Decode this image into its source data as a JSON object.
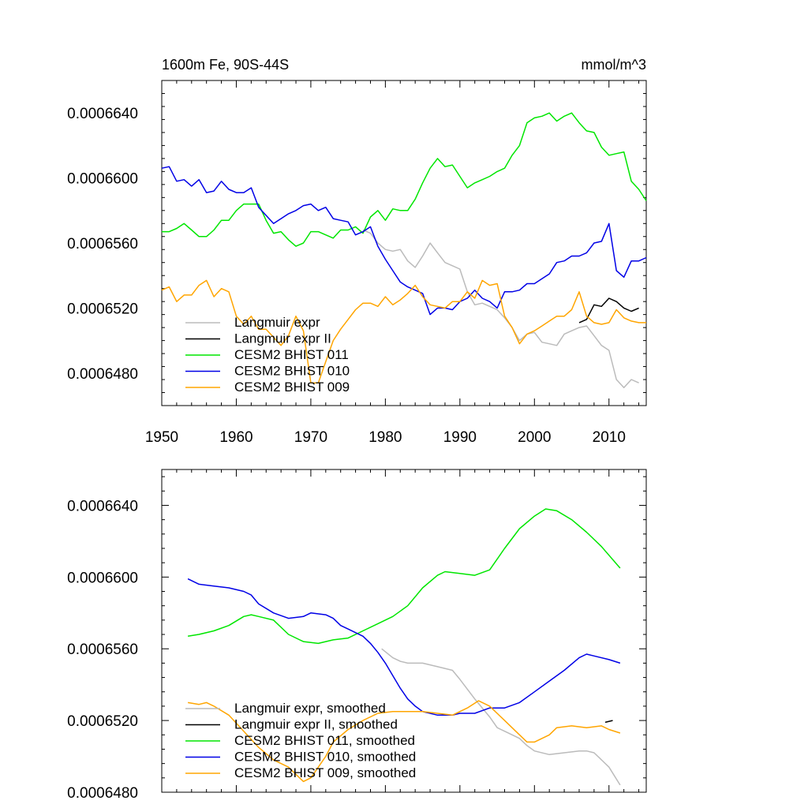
{
  "chart_data": [
    {
      "type": "line",
      "title_left": "1600m Fe, 90S-44S",
      "title_right": "mmol/m^3",
      "xlim": [
        1950,
        2015
      ],
      "ylim": [
        0.000646,
        0.000666
      ],
      "xticks": [
        1950,
        1960,
        1970,
        1980,
        1990,
        2000,
        2010
      ],
      "xtick_labels": [
        "1950",
        "1960",
        "1970",
        "1980",
        "1990",
        "2000",
        "2010"
      ],
      "yticks": [
        0.000648,
        0.000652,
        0.000656,
        0.00066,
        0.000664
      ],
      "ytick_labels": [
        "0.0006480",
        "0.0006520",
        "0.0006560",
        "0.0006600",
        "0.0006640"
      ],
      "legend_position": "bottom-left",
      "series": [
        {
          "name": "Langmuir expr",
          "color": "#bbbbbb",
          "x": [
            1977,
            1978,
            1979,
            1980,
            1981,
            1982,
            1983,
            1984,
            1985,
            1986,
            1987,
            1988,
            1989,
            1990,
            1991,
            1992,
            1993,
            1994,
            1995,
            1996,
            1997,
            1998,
            1999,
            2000,
            2001,
            2002,
            2003,
            2004,
            2005,
            2006,
            2007,
            2008,
            2009,
            2010,
            2011,
            2012,
            2013,
            2014
          ],
          "y": [
            0.0006568,
            0.0006566,
            0.000656,
            0.0006556,
            0.0006555,
            0.0006556,
            0.0006549,
            0.0006545,
            0.0006552,
            0.000656,
            0.0006554,
            0.0006548,
            0.0006546,
            0.0006544,
            0.000653,
            0.0006522,
            0.0006523,
            0.0006521,
            0.0006519,
            0.0006514,
            0.0006508,
            0.00065,
            0.0006504,
            0.0006505,
            0.0006499,
            0.0006498,
            0.0006497,
            0.0006504,
            0.0006506,
            0.0006508,
            0.0006509,
            0.0006503,
            0.0006497,
            0.0006494,
            0.0006476,
            0.0006471,
            0.0006476,
            0.0006474
          ]
        },
        {
          "name": "Langmuir expr II",
          "color": "#000000",
          "x": [
            2006,
            2007,
            2008,
            2009,
            2010,
            2011,
            2012,
            2013,
            2014
          ],
          "y": [
            0.0006511,
            0.0006513,
            0.0006522,
            0.0006521,
            0.0006526,
            0.0006524,
            0.000652,
            0.0006518,
            0.000652
          ]
        },
        {
          "name": "CESM2 BHIST 011",
          "color": "#00e600",
          "x": [
            1950,
            1951,
            1952,
            1953,
            1954,
            1955,
            1956,
            1957,
            1958,
            1959,
            1960,
            1961,
            1962,
            1963,
            1964,
            1965,
            1966,
            1967,
            1968,
            1969,
            1970,
            1971,
            1972,
            1973,
            1974,
            1975,
            1976,
            1977,
            1978,
            1979,
            1980,
            1981,
            1982,
            1983,
            1984,
            1985,
            1986,
            1987,
            1988,
            1989,
            1990,
            1991,
            1992,
            1993,
            1994,
            1995,
            1996,
            1997,
            1998,
            1999,
            2000,
            2001,
            2002,
            2003,
            2004,
            2005,
            2006,
            2007,
            2008,
            2009,
            2010,
            2011,
            2012,
            2013,
            2014,
            2015
          ],
          "y": [
            0.0006567,
            0.0006567,
            0.0006569,
            0.0006572,
            0.0006568,
            0.0006564,
            0.0006564,
            0.0006568,
            0.0006574,
            0.0006574,
            0.000658,
            0.0006584,
            0.0006584,
            0.0006584,
            0.0006574,
            0.0006566,
            0.0006567,
            0.0006562,
            0.0006558,
            0.000656,
            0.0006567,
            0.0006567,
            0.0006565,
            0.0006563,
            0.0006568,
            0.0006568,
            0.000657,
            0.0006566,
            0.0006576,
            0.000658,
            0.0006574,
            0.0006581,
            0.000658,
            0.000658,
            0.0006587,
            0.0006597,
            0.0006606,
            0.0006612,
            0.0006607,
            0.0006608,
            0.0006601,
            0.0006594,
            0.0006597,
            0.0006599,
            0.0006601,
            0.0006604,
            0.0006606,
            0.0006614,
            0.000662,
            0.0006634,
            0.0006637,
            0.0006638,
            0.000664,
            0.0006635,
            0.0006638,
            0.000664,
            0.0006634,
            0.0006629,
            0.0006628,
            0.0006619,
            0.0006614,
            0.0006615,
            0.0006616,
            0.0006598,
            0.0006593,
            0.0006586
          ]
        },
        {
          "name": "CESM2 BHIST 010",
          "color": "#0000e6",
          "x": [
            1950,
            1951,
            1952,
            1953,
            1954,
            1955,
            1956,
            1957,
            1958,
            1959,
            1960,
            1961,
            1962,
            1963,
            1964,
            1965,
            1966,
            1967,
            1968,
            1969,
            1970,
            1971,
            1972,
            1973,
            1974,
            1975,
            1976,
            1977,
            1978,
            1979,
            1980,
            1981,
            1982,
            1983,
            1984,
            1985,
            1986,
            1987,
            1988,
            1989,
            1990,
            1991,
            1992,
            1993,
            1994,
            1995,
            1996,
            1997,
            1998,
            1999,
            2000,
            2001,
            2002,
            2003,
            2004,
            2005,
            2006,
            2007,
            2008,
            2009,
            2010,
            2011,
            2012,
            2013,
            2014,
            2015
          ],
          "y": [
            0.0006606,
            0.0006607,
            0.0006598,
            0.0006599,
            0.0006595,
            0.0006599,
            0.0006591,
            0.0006592,
            0.0006598,
            0.0006593,
            0.0006591,
            0.0006591,
            0.0006594,
            0.0006582,
            0.0006577,
            0.0006572,
            0.0006575,
            0.0006578,
            0.000658,
            0.0006583,
            0.0006584,
            0.000658,
            0.0006582,
            0.0006575,
            0.0006574,
            0.0006573,
            0.0006565,
            0.0006567,
            0.000657,
            0.0006558,
            0.000655,
            0.0006543,
            0.0006536,
            0.0006533,
            0.0006531,
            0.0006529,
            0.0006516,
            0.000652,
            0.000652,
            0.0006519,
            0.0006524,
            0.0006526,
            0.0006531,
            0.0006526,
            0.0006524,
            0.000652,
            0.000653,
            0.000653,
            0.0006531,
            0.0006535,
            0.0006535,
            0.0006538,
            0.0006541,
            0.0006548,
            0.0006549,
            0.0006552,
            0.0006552,
            0.0006554,
            0.000656,
            0.0006561,
            0.0006572,
            0.0006543,
            0.0006539,
            0.0006549,
            0.0006549,
            0.0006551
          ]
        },
        {
          "name": "CESM2 BHIST 009",
          "color": "#ffa500",
          "x": [
            1950,
            1951,
            1952,
            1953,
            1954,
            1955,
            1956,
            1957,
            1958,
            1959,
            1960,
            1961,
            1962,
            1963,
            1964,
            1965,
            1966,
            1967,
            1968,
            1969,
            1970,
            1971,
            1972,
            1973,
            1974,
            1975,
            1976,
            1977,
            1978,
            1979,
            1980,
            1981,
            1982,
            1983,
            1984,
            1985,
            1986,
            1987,
            1988,
            1989,
            1990,
            1991,
            1992,
            1993,
            1994,
            1995,
            1996,
            1997,
            1998,
            1999,
            2000,
            2001,
            2002,
            2003,
            2004,
            2005,
            2006,
            2007,
            2008,
            2009,
            2010,
            2011,
            2012,
            2013,
            2014,
            2015
          ],
          "y": [
            0.0006531,
            0.0006533,
            0.0006524,
            0.0006528,
            0.0006528,
            0.0006534,
            0.0006537,
            0.0006527,
            0.0006532,
            0.000653,
            0.0006515,
            0.000651,
            0.0006515,
            0.0006507,
            0.0006507,
            0.0006502,
            0.0006497,
            0.0006503,
            0.0006515,
            0.0006506,
            0.0006474,
            0.0006474,
            0.0006487,
            0.00065,
            0.0006507,
            0.0006513,
            0.0006519,
            0.0006523,
            0.0006523,
            0.0006521,
            0.0006527,
            0.0006522,
            0.0006525,
            0.0006529,
            0.0006534,
            0.0006527,
            0.0006522,
            0.0006521,
            0.000652,
            0.0006524,
            0.0006524,
            0.000653,
            0.0006526,
            0.0006537,
            0.0006534,
            0.0006535,
            0.0006515,
            0.0006508,
            0.0006498,
            0.0006504,
            0.0006506,
            0.0006509,
            0.0006512,
            0.0006515,
            0.0006515,
            0.0006519,
            0.000653,
            0.0006515,
            0.0006511,
            0.000651,
            0.0006511,
            0.0006519,
            0.0006514,
            0.0006512,
            0.0006511,
            0.0006511
          ]
        }
      ]
    },
    {
      "type": "line",
      "title_left": "",
      "title_right": "",
      "xlim": [
        1950,
        2015
      ],
      "ylim": [
        0.000648,
        0.000666
      ],
      "xticks": [
        1950,
        1960,
        1970,
        1980,
        1990,
        2000,
        2010
      ],
      "xtick_labels": [],
      "yticks": [
        0.000648,
        0.000652,
        0.000656,
        0.00066,
        0.000664
      ],
      "ytick_labels": [
        "0.0006480",
        "0.0006520",
        "0.0006560",
        "0.0006600",
        "0.0006640"
      ],
      "legend_position": "bottom-left",
      "series": [
        {
          "name": "Langmuir expr, smoothed",
          "color": "#bbbbbb",
          "x": [
            1979.5,
            1981,
            1982,
            1983,
            1985,
            1987,
            1989,
            1990,
            1992,
            1994,
            1995,
            1996,
            1998,
            1999,
            2000,
            2002,
            2004,
            2006,
            2007,
            2008,
            2010,
            2011.5
          ],
          "y": [
            0.000656,
            0.0006555,
            0.0006553,
            0.0006552,
            0.0006552,
            0.000655,
            0.0006548,
            0.0006543,
            0.0006532,
            0.0006522,
            0.0006516,
            0.0006514,
            0.000651,
            0.0006506,
            0.0006503,
            0.0006501,
            0.0006502,
            0.0006503,
            0.0006503,
            0.0006502,
            0.0006494,
            0.0006484
          ]
        },
        {
          "name": "Langmuir expr II, smoothed",
          "color": "#000000",
          "x": [
            2009.5,
            2010.5
          ],
          "y": [
            0.0006519,
            0.000652
          ]
        },
        {
          "name": "CESM2 BHIST 011, smoothed",
          "color": "#00e600",
          "x": [
            1953.5,
            1955,
            1957,
            1959,
            1961,
            1962,
            1963,
            1965,
            1967,
            1969,
            1971,
            1973,
            1975,
            1977,
            1979,
            1981,
            1983,
            1985,
            1987,
            1988,
            1990,
            1992,
            1994,
            1996,
            1998,
            2000,
            2001.5,
            2003,
            2005,
            2007,
            2009,
            2011.5
          ],
          "y": [
            0.0006567,
            0.0006568,
            0.000657,
            0.0006573,
            0.0006578,
            0.0006579,
            0.0006578,
            0.0006576,
            0.0006568,
            0.0006564,
            0.0006563,
            0.0006565,
            0.0006566,
            0.000657,
            0.0006574,
            0.0006578,
            0.0006584,
            0.0006594,
            0.0006601,
            0.0006603,
            0.0006602,
            0.0006601,
            0.0006604,
            0.0006616,
            0.0006627,
            0.0006634,
            0.0006638,
            0.0006637,
            0.0006632,
            0.0006625,
            0.0006617,
            0.0006605
          ]
        },
        {
          "name": "CESM2 BHIST 010, smoothed",
          "color": "#0000e6",
          "x": [
            1953.5,
            1955,
            1957,
            1959,
            1961,
            1962,
            1963,
            1965,
            1967,
            1969,
            1970,
            1972,
            1973,
            1974,
            1975,
            1977,
            1978,
            1979,
            1980,
            1981,
            1982,
            1983,
            1984,
            1985,
            1987,
            1989,
            1990,
            1992,
            1994,
            1996,
            1998,
            2000,
            2002,
            2004,
            2006,
            2007,
            2008,
            2010,
            2011.5
          ],
          "y": [
            0.0006599,
            0.0006596,
            0.0006595,
            0.0006594,
            0.0006592,
            0.000659,
            0.0006585,
            0.000658,
            0.0006577,
            0.0006578,
            0.000658,
            0.0006579,
            0.0006577,
            0.0006573,
            0.0006571,
            0.0006567,
            0.0006563,
            0.0006558,
            0.0006552,
            0.0006545,
            0.0006538,
            0.0006532,
            0.0006528,
            0.0006525,
            0.0006523,
            0.0006523,
            0.0006524,
            0.0006524,
            0.0006527,
            0.0006527,
            0.000653,
            0.0006536,
            0.0006542,
            0.0006548,
            0.0006555,
            0.0006557,
            0.0006556,
            0.0006554,
            0.0006552
          ]
        },
        {
          "name": "CESM2 BHIST 009, smoothed",
          "color": "#ffa500",
          "x": [
            1953.5,
            1955,
            1956,
            1957,
            1959,
            1961,
            1963,
            1965,
            1967,
            1968,
            1969,
            1970,
            1971,
            1972,
            1973,
            1975,
            1977,
            1979,
            1981,
            1983,
            1985,
            1987,
            1989,
            1991,
            1992.5,
            1994,
            1996,
            1998,
            1999,
            2000,
            2002,
            2003,
            2005,
            2007,
            2009,
            2010,
            2011.5
          ],
          "y": [
            0.000653,
            0.0006529,
            0.000653,
            0.0006528,
            0.0006523,
            0.0006514,
            0.0006505,
            0.0006498,
            0.0006494,
            0.000649,
            0.0006486,
            0.0006488,
            0.0006494,
            0.00065,
            0.0006508,
            0.0006515,
            0.000652,
            0.0006524,
            0.0006525,
            0.0006525,
            0.0006525,
            0.0006524,
            0.0006523,
            0.0006527,
            0.0006531,
            0.0006528,
            0.000652,
            0.0006512,
            0.0006508,
            0.0006508,
            0.0006512,
            0.0006516,
            0.0006517,
            0.0006516,
            0.0006517,
            0.0006515,
            0.0006513
          ]
        }
      ]
    }
  ]
}
